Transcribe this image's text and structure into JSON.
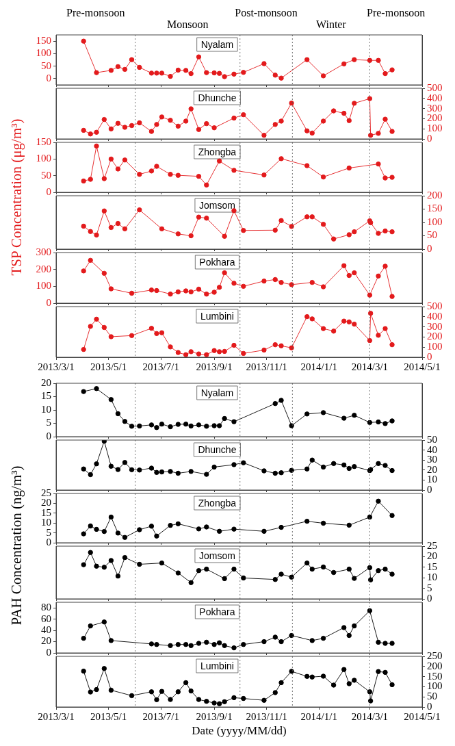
{
  "chart_data": [
    {
      "type": "line",
      "ylabel": "TSP Concentration (μg/m³)",
      "annotations": [
        "Nyalam",
        "Pre-monsoon",
        "Monsoon",
        "Post-monsoon",
        "Winter",
        "Pre-monsoon"
      ],
      "marker": "circle",
      "tick_labels": "y",
      "xlim": [
        "2013-03-01",
        "2014-05-01"
      ],
      "xticks": [
        {
          "value": "2013-03-01",
          "label": null
        },
        {
          "value": "2013-05-01",
          "label": null
        },
        {
          "value": "2013-07-01",
          "label": null
        },
        {
          "value": "2013-09-01",
          "label": null
        },
        {
          "value": "2013-11-01",
          "label": null
        },
        {
          "value": "2014-01-01",
          "label": null
        },
        {
          "value": "2014-03-01",
          "label": null
        },
        {
          "value": "2014-05-01",
          "label": null
        }
      ],
      "ylim": [
        -25,
        175
      ],
      "yticks": [
        0,
        50,
        100,
        150
      ],
      "ref_lines": [
        {
          "axis": "x",
          "value": "2013-06-01",
          "line_style": "dotted"
        },
        {
          "axis": "x",
          "value": "2013-10-01",
          "line_style": "dotted"
        },
        {
          "axis": "x",
          "value": "2013-12-01",
          "line_style": "dotted"
        },
        {
          "axis": "x",
          "value": "2014-03-01",
          "line_style": "dotted"
        }
      ],
      "x": [
        "2013-04-02",
        "2013-04-17",
        "2013-05-04",
        "2013-05-12",
        "2013-05-20",
        "2013-05-28",
        "2013-06-06",
        "2013-06-20",
        "2013-06-26",
        "2013-07-02",
        "2013-07-12",
        "2013-07-21",
        "2013-07-30",
        "2013-08-05",
        "2013-08-14",
        "2013-08-23",
        "2013-09-01",
        "2013-09-07",
        "2013-09-13",
        "2013-09-24",
        "2013-10-05",
        "2013-10-29",
        "2013-11-11",
        "2013-11-18",
        "2013-12-18",
        "2014-01-06",
        "2014-01-30",
        "2014-02-11",
        "2014-03-01",
        "2014-03-11",
        "2014-03-19",
        "2014-03-27"
      ],
      "series": [
        {
          "color": "#e31a1c",
          "values": [
            150,
            24,
            33,
            48,
            37,
            76,
            45,
            22,
            22,
            22,
            9,
            34,
            33,
            20,
            87,
            24,
            23,
            21,
            8,
            18,
            25,
            60,
            14,
            2,
            76,
            11,
            59,
            76,
            73,
            73,
            20,
            35
          ]
        }
      ]
    },
    {
      "type": "line",
      "annotations": [
        "Dhunche"
      ],
      "marker": "circle",
      "tick_labels": "y",
      "xlim": [
        "2013-03-01",
        "2014-05-01"
      ],
      "xticks": [
        {
          "value": "2013-03-01",
          "label": null
        },
        {
          "value": "2013-05-01",
          "label": null
        },
        {
          "value": "2013-07-01",
          "label": null
        },
        {
          "value": "2013-09-01",
          "label": null
        },
        {
          "value": "2013-11-01",
          "label": null
        },
        {
          "value": "2014-01-01",
          "label": null
        },
        {
          "value": "2014-03-01",
          "label": null
        },
        {
          "value": "2014-05-01",
          "label": null
        }
      ],
      "y2lim": [
        0,
        500
      ],
      "y2ticks": [
        0,
        100,
        200,
        300,
        400,
        500
      ],
      "ref_lines": [
        {
          "axis": "x",
          "value": "2013-06-01",
          "line_style": "dotted"
        },
        {
          "axis": "x",
          "value": "2013-10-01",
          "line_style": "dotted"
        },
        {
          "axis": "x",
          "value": "2013-12-01",
          "line_style": "dotted"
        },
        {
          "axis": "x",
          "value": "2014-03-01",
          "line_style": "dotted"
        }
      ],
      "x": [
        "2013-04-02",
        "2013-04-10",
        "2013-04-17",
        "2013-04-26",
        "2013-05-04",
        "2013-05-12",
        "2013-05-20",
        "2013-05-28",
        "2013-06-06",
        "2013-06-20",
        "2013-06-26",
        "2013-07-02",
        "2013-07-12",
        "2013-07-21",
        "2013-07-30",
        "2013-08-05",
        "2013-08-14",
        "2013-08-23",
        "2013-09-01",
        "2013-09-24",
        "2013-10-05",
        "2013-10-29",
        "2013-11-11",
        "2013-11-18",
        "2013-11-30",
        "2013-12-18",
        "2013-12-24",
        "2014-01-06",
        "2014-01-18",
        "2014-01-30",
        "2014-02-05",
        "2014-02-11",
        "2014-03-01",
        "2014-03-02",
        "2014-03-11",
        "2014-03-19",
        "2014-03-27"
      ],
      "series": [
        {
          "color": "#e31a1c",
          "axis": "y2",
          "values": [
            85,
            49,
            66,
            192,
            99,
            154,
            115,
            132,
            159,
            74,
            143,
            217,
            184,
            126,
            176,
            297,
            93,
            151,
            110,
            206,
            239,
            36,
            143,
            176,
            354,
            80,
            58,
            176,
            277,
            253,
            181,
            352,
            398,
            36,
            55,
            195,
            74
          ]
        }
      ]
    },
    {
      "type": "line",
      "annotations": [
        "Zhongba"
      ],
      "marker": "circle",
      "tick_labels": "y",
      "xlim": [
        "2013-03-01",
        "2014-05-01"
      ],
      "xticks": [
        {
          "value": "2013-03-01",
          "label": null
        },
        {
          "value": "2013-05-01",
          "label": null
        },
        {
          "value": "2013-07-01",
          "label": null
        },
        {
          "value": "2013-09-01",
          "label": null
        },
        {
          "value": "2013-11-01",
          "label": null
        },
        {
          "value": "2014-01-01",
          "label": null
        },
        {
          "value": "2014-03-01",
          "label": null
        },
        {
          "value": "2014-05-01",
          "label": null
        }
      ],
      "ylim": [
        0,
        150
      ],
      "yticks": [
        0,
        50,
        100,
        150
      ],
      "ref_lines": [
        {
          "axis": "x",
          "value": "2013-06-01",
          "line_style": "dotted"
        },
        {
          "axis": "x",
          "value": "2013-10-01",
          "line_style": "dotted"
        },
        {
          "axis": "x",
          "value": "2013-12-01",
          "line_style": "dotted"
        },
        {
          "axis": "x",
          "value": "2014-03-01",
          "line_style": "dotted"
        }
      ],
      "x": [
        "2013-04-02",
        "2013-04-10",
        "2013-04-17",
        "2013-04-26",
        "2013-05-04",
        "2013-05-12",
        "2013-05-20",
        "2013-06-06",
        "2013-06-20",
        "2013-06-26",
        "2013-07-12",
        "2013-07-21",
        "2013-08-14",
        "2013-08-23",
        "2013-09-07",
        "2013-09-24",
        "2013-10-29",
        "2013-11-18",
        "2013-12-18",
        "2014-01-06",
        "2014-02-05",
        "2014-03-11",
        "2014-03-19",
        "2014-03-27"
      ],
      "series": [
        {
          "color": "#e31a1c",
          "values": [
            34,
            39,
            139,
            41,
            100,
            70,
            97,
            54,
            64,
            78,
            54,
            51,
            48,
            22,
            94,
            66,
            52,
            101,
            80,
            46,
            73,
            85,
            43,
            45
          ]
        }
      ]
    },
    {
      "type": "line",
      "annotations": [
        "Jomsom"
      ],
      "marker": "circle",
      "tick_labels": "y",
      "xlim": [
        "2013-03-01",
        "2014-05-01"
      ],
      "xticks": [
        {
          "value": "2013-03-01",
          "label": null
        },
        {
          "value": "2013-05-01",
          "label": null
        },
        {
          "value": "2013-07-01",
          "label": null
        },
        {
          "value": "2013-09-01",
          "label": null
        },
        {
          "value": "2013-11-01",
          "label": null
        },
        {
          "value": "2014-01-01",
          "label": null
        },
        {
          "value": "2014-03-01",
          "label": null
        },
        {
          "value": "2014-05-01",
          "label": null
        }
      ],
      "y2lim": [
        0,
        200
      ],
      "y2ticks": [
        0,
        50,
        100,
        150,
        200
      ],
      "ref_lines": [
        {
          "axis": "x",
          "value": "2013-06-01",
          "line_style": "dotted"
        },
        {
          "axis": "x",
          "value": "2013-10-01",
          "line_style": "dotted"
        },
        {
          "axis": "x",
          "value": "2013-12-01",
          "line_style": "dotted"
        },
        {
          "axis": "x",
          "value": "2014-03-01",
          "line_style": "dotted"
        }
      ],
      "x": [
        "2013-04-02",
        "2013-04-10",
        "2013-04-17",
        "2013-04-26",
        "2013-05-04",
        "2013-05-12",
        "2013-05-20",
        "2013-06-06",
        "2013-07-02",
        "2013-07-21",
        "2013-08-05",
        "2013-08-14",
        "2013-08-23",
        "2013-09-13",
        "2013-09-24",
        "2013-10-05",
        "2013-11-11",
        "2013-11-18",
        "2013-11-30",
        "2013-12-18",
        "2013-12-24",
        "2014-01-06",
        "2014-01-18",
        "2014-02-05",
        "2014-02-11",
        "2014-03-01",
        "2014-03-02",
        "2014-03-11",
        "2014-03-19",
        "2014-03-27"
      ],
      "series": [
        {
          "color": "#e31a1c",
          "axis": "y2",
          "values": [
            86,
            66,
            53,
            143,
            81,
            96,
            76,
            147,
            76,
            57,
            50,
            120,
            116,
            48,
            144,
            70,
            71,
            107,
            85,
            121,
            121,
            93,
            38,
            54,
            65,
            106,
            99,
            59,
            68,
            65
          ]
        }
      ]
    },
    {
      "type": "line",
      "annotations": [
        "Pokhara"
      ],
      "marker": "circle",
      "tick_labels": "y",
      "xlim": [
        "2013-03-01",
        "2014-05-01"
      ],
      "xticks": [
        {
          "value": "2013-03-01",
          "label": null
        },
        {
          "value": "2013-05-01",
          "label": null
        },
        {
          "value": "2013-07-01",
          "label": null
        },
        {
          "value": "2013-09-01",
          "label": null
        },
        {
          "value": "2013-11-01",
          "label": null
        },
        {
          "value": "2014-01-01",
          "label": null
        },
        {
          "value": "2014-03-01",
          "label": null
        },
        {
          "value": "2014-05-01",
          "label": null
        }
      ],
      "ylim": [
        0,
        300
      ],
      "yticks": [
        0,
        100,
        200,
        300
      ],
      "ref_lines": [
        {
          "axis": "x",
          "value": "2013-06-01",
          "line_style": "dotted"
        },
        {
          "axis": "x",
          "value": "2013-10-01",
          "line_style": "dotted"
        },
        {
          "axis": "x",
          "value": "2013-12-01",
          "line_style": "dotted"
        },
        {
          "axis": "x",
          "value": "2014-03-01",
          "line_style": "dotted"
        }
      ],
      "x": [
        "2013-04-02",
        "2013-04-10",
        "2013-04-26",
        "2013-05-04",
        "2013-05-28",
        "2013-06-20",
        "2013-06-26",
        "2013-07-12",
        "2013-07-21",
        "2013-07-30",
        "2013-08-05",
        "2013-08-14",
        "2013-08-23",
        "2013-09-01",
        "2013-09-07",
        "2013-09-13",
        "2013-09-24",
        "2013-10-05",
        "2013-10-29",
        "2013-11-11",
        "2013-11-18",
        "2013-11-30",
        "2013-12-24",
        "2014-01-06",
        "2014-01-30",
        "2014-02-05",
        "2014-02-11",
        "2014-03-01",
        "2014-03-11",
        "2014-03-19",
        "2014-03-27"
      ],
      "series": [
        {
          "color": "#e31a1c",
          "values": [
            191,
            254,
            177,
            85,
            59,
            78,
            75,
            54,
            67,
            73,
            67,
            83,
            54,
            65,
            94,
            180,
            118,
            100,
            131,
            140,
            123,
            110,
            123,
            97,
            222,
            164,
            180,
            48,
            161,
            219,
            40
          ]
        }
      ]
    },
    {
      "type": "line",
      "annotations": [
        "Lumbini"
      ],
      "marker": "circle",
      "xlim": [
        "2013-03-01",
        "2014-05-01"
      ],
      "xticks": [
        {
          "value": "2013-03-01",
          "label": "2013/3/1"
        },
        {
          "value": "2013-05-01",
          "label": "2013/5/1"
        },
        {
          "value": "2013-07-01",
          "label": "2013/7/1"
        },
        {
          "value": "2013-09-01",
          "label": "2013/9/1"
        },
        {
          "value": "2013-11-01",
          "label": "2013/11/1"
        },
        {
          "value": "2014-01-01",
          "label": "2014/1/1"
        },
        {
          "value": "2014-03-01",
          "label": "2014/3/1"
        },
        {
          "value": "2014-05-01",
          "label": "2014/5/1"
        }
      ],
      "y2lim": [
        0,
        500
      ],
      "y2ticks": [
        0,
        100,
        200,
        300,
        400,
        500
      ],
      "ref_lines": [
        {
          "axis": "x",
          "value": "2013-06-01",
          "line_style": "dotted"
        },
        {
          "axis": "x",
          "value": "2013-10-01",
          "line_style": "dotted"
        },
        {
          "axis": "x",
          "value": "2013-12-01",
          "line_style": "dotted"
        },
        {
          "axis": "x",
          "value": "2014-03-01",
          "line_style": "dotted"
        }
      ],
      "x": [
        "2013-04-02",
        "2013-04-10",
        "2013-04-17",
        "2013-04-26",
        "2013-05-04",
        "2013-05-28",
        "2013-06-20",
        "2013-06-26",
        "2013-07-02",
        "2013-07-12",
        "2013-07-21",
        "2013-07-30",
        "2013-08-05",
        "2013-08-14",
        "2013-08-23",
        "2013-09-01",
        "2013-09-07",
        "2013-09-13",
        "2013-09-24",
        "2013-10-05",
        "2013-10-29",
        "2013-11-11",
        "2013-11-18",
        "2013-11-30",
        "2013-12-18",
        "2013-12-24",
        "2014-01-06",
        "2014-01-18",
        "2014-01-30",
        "2014-02-05",
        "2014-02-11",
        "2014-03-01",
        "2014-03-02",
        "2014-03-11",
        "2014-03-19",
        "2014-03-27"
      ],
      "series": [
        {
          "color": "#e31a1c",
          "axis": "y2",
          "values": [
            77,
            305,
            376,
            294,
            203,
            214,
            286,
            234,
            242,
            102,
            47,
            25,
            55,
            33,
            25,
            66,
            55,
            58,
            118,
            38,
            71,
            124,
            113,
            93,
            401,
            379,
            283,
            258,
            357,
            349,
            327,
            165,
            434,
            217,
            283,
            124
          ]
        }
      ]
    },
    {
      "type": "line",
      "ylabel": "PAH Concentration (ng/m³)",
      "annotations": [
        "Nyalam"
      ],
      "marker": "circle",
      "tick_labels": "y",
      "xlim": [
        "2013-03-01",
        "2014-05-01"
      ],
      "xticks": [
        {
          "value": "2013-03-01",
          "label": null
        },
        {
          "value": "2013-05-01",
          "label": null
        },
        {
          "value": "2013-07-01",
          "label": null
        },
        {
          "value": "2013-09-01",
          "label": null
        },
        {
          "value": "2013-11-01",
          "label": null
        },
        {
          "value": "2014-01-01",
          "label": null
        },
        {
          "value": "2014-03-01",
          "label": null
        },
        {
          "value": "2014-05-01",
          "label": null
        }
      ],
      "ylim": [
        0,
        20
      ],
      "yticks": [
        0,
        5,
        10,
        15,
        20
      ],
      "ref_lines": [
        {
          "axis": "x",
          "value": "2013-06-01",
          "line_style": "dotted"
        },
        {
          "axis": "x",
          "value": "2013-10-01",
          "line_style": "dotted"
        },
        {
          "axis": "x",
          "value": "2013-12-01",
          "line_style": "dotted"
        },
        {
          "axis": "x",
          "value": "2014-03-01",
          "line_style": "dotted"
        }
      ],
      "x": [
        "2013-04-02",
        "2013-04-17",
        "2013-05-04",
        "2013-05-12",
        "2013-05-20",
        "2013-05-28",
        "2013-06-06",
        "2013-06-20",
        "2013-06-26",
        "2013-07-02",
        "2013-07-12",
        "2013-07-21",
        "2013-07-30",
        "2013-08-05",
        "2013-08-14",
        "2013-08-23",
        "2013-09-01",
        "2013-09-07",
        "2013-09-13",
        "2013-09-24",
        "2013-11-11",
        "2013-11-18",
        "2013-11-30",
        "2013-12-18",
        "2014-01-06",
        "2014-01-30",
        "2014-02-11",
        "2014-03-01",
        "2014-03-11",
        "2014-03-19",
        "2014-03-27"
      ],
      "series": [
        {
          "color": "#000000",
          "values": [
            16.9,
            18.0,
            13.9,
            8.6,
            5.7,
            3.9,
            4.0,
            4.4,
            3.4,
            4.7,
            3.7,
            4.6,
            4.7,
            4.0,
            4.4,
            3.9,
            4.1,
            4.1,
            6.8,
            5.6,
            12.4,
            13.6,
            4.1,
            8.5,
            9.0,
            6.9,
            8.0,
            5.3,
            5.5,
            4.9,
            5.9
          ]
        }
      ]
    },
    {
      "type": "line",
      "annotations": [
        "Dhunche"
      ],
      "marker": "circle",
      "tick_labels": "y",
      "xlim": [
        "2013-03-01",
        "2014-05-01"
      ],
      "xticks": [
        {
          "value": "2013-03-01",
          "label": null
        },
        {
          "value": "2013-05-01",
          "label": null
        },
        {
          "value": "2013-07-01",
          "label": null
        },
        {
          "value": "2013-09-01",
          "label": null
        },
        {
          "value": "2013-11-01",
          "label": null
        },
        {
          "value": "2014-01-01",
          "label": null
        },
        {
          "value": "2014-03-01",
          "label": null
        },
        {
          "value": "2014-05-01",
          "label": null
        }
      ],
      "y2lim": [
        0,
        50
      ],
      "y2ticks": [
        0,
        10,
        20,
        30,
        40,
        50
      ],
      "ref_lines": [
        {
          "axis": "x",
          "value": "2013-06-01",
          "line_style": "dotted"
        },
        {
          "axis": "x",
          "value": "2013-10-01",
          "line_style": "dotted"
        },
        {
          "axis": "x",
          "value": "2013-12-01",
          "line_style": "dotted"
        },
        {
          "axis": "x",
          "value": "2014-03-01",
          "line_style": "dotted"
        }
      ],
      "x": [
        "2013-04-02",
        "2013-04-10",
        "2013-04-17",
        "2013-04-26",
        "2013-05-04",
        "2013-05-12",
        "2013-05-20",
        "2013-05-28",
        "2013-06-06",
        "2013-06-20",
        "2013-06-26",
        "2013-07-02",
        "2013-07-12",
        "2013-07-21",
        "2013-08-05",
        "2013-08-23",
        "2013-09-01",
        "2013-09-24",
        "2013-10-05",
        "2013-10-29",
        "2013-11-11",
        "2013-11-18",
        "2013-11-30",
        "2013-12-18",
        "2013-12-24",
        "2014-01-06",
        "2014-01-18",
        "2014-01-30",
        "2014-02-05",
        "2014-02-11",
        "2014-03-01",
        "2014-03-02",
        "2014-03-11",
        "2014-03-19",
        "2014-03-27"
      ],
      "series": [
        {
          "color": "#000000",
          "axis": "y2",
          "values": [
            21.1,
            15.4,
            26.2,
            48.9,
            23.8,
            20.5,
            27.6,
            20.3,
            20.0,
            21.9,
            17.6,
            18.1,
            18.6,
            16.8,
            18.6,
            15.7,
            23.0,
            25.4,
            27.3,
            19.2,
            16.8,
            17.3,
            19.7,
            21.1,
            30.0,
            23.0,
            26.5,
            25.1,
            21.6,
            23.5,
            19.5,
            20.5,
            26.5,
            24.6,
            19.5
          ]
        }
      ]
    },
    {
      "type": "line",
      "annotations": [
        "Zhongba"
      ],
      "marker": "circle",
      "tick_labels": "y",
      "xlim": [
        "2013-03-01",
        "2014-05-01"
      ],
      "xticks": [
        {
          "value": "2013-03-01",
          "label": null
        },
        {
          "value": "2013-05-01",
          "label": null
        },
        {
          "value": "2013-07-01",
          "label": null
        },
        {
          "value": "2013-09-01",
          "label": null
        },
        {
          "value": "2013-11-01",
          "label": null
        },
        {
          "value": "2014-01-01",
          "label": null
        },
        {
          "value": "2014-03-01",
          "label": null
        },
        {
          "value": "2014-05-01",
          "label": null
        }
      ],
      "ylim": [
        0,
        25
      ],
      "yticks": [
        0,
        5,
        10,
        15,
        20,
        25
      ],
      "ref_lines": [
        {
          "axis": "x",
          "value": "2013-06-01",
          "line_style": "dotted"
        },
        {
          "axis": "x",
          "value": "2013-10-01",
          "line_style": "dotted"
        },
        {
          "axis": "x",
          "value": "2013-12-01",
          "line_style": "dotted"
        },
        {
          "axis": "x",
          "value": "2014-03-01",
          "line_style": "dotted"
        }
      ],
      "x": [
        "2013-04-02",
        "2013-04-10",
        "2013-04-17",
        "2013-04-26",
        "2013-05-04",
        "2013-05-12",
        "2013-05-20",
        "2013-06-06",
        "2013-06-20",
        "2013-06-26",
        "2013-07-12",
        "2013-07-21",
        "2013-08-14",
        "2013-08-23",
        "2013-09-07",
        "2013-09-24",
        "2013-10-29",
        "2013-11-18",
        "2013-12-18",
        "2014-01-06",
        "2014-02-05",
        "2014-03-01",
        "2014-03-11",
        "2014-03-27"
      ],
      "series": [
        {
          "color": "#000000",
          "values": [
            4.5,
            8.5,
            6.8,
            5.7,
            13.0,
            4.9,
            2.7,
            6.6,
            8.4,
            3.4,
            8.8,
            9.6,
            7.0,
            8.0,
            5.8,
            6.9,
            5.8,
            7.8,
            10.9,
            9.9,
            8.9,
            13.0,
            21.1,
            13.8
          ]
        }
      ]
    },
    {
      "type": "line",
      "annotations": [
        "Jomsom"
      ],
      "marker": "circle",
      "tick_labels": "y",
      "xlim": [
        "2013-03-01",
        "2014-05-01"
      ],
      "xticks": [
        {
          "value": "2013-03-01",
          "label": null
        },
        {
          "value": "2013-05-01",
          "label": null
        },
        {
          "value": "2013-07-01",
          "label": null
        },
        {
          "value": "2013-09-01",
          "label": null
        },
        {
          "value": "2013-11-01",
          "label": null
        },
        {
          "value": "2014-01-01",
          "label": null
        },
        {
          "value": "2014-03-01",
          "label": null
        },
        {
          "value": "2014-05-01",
          "label": null
        }
      ],
      "y2lim": [
        0,
        25
      ],
      "y2ticks": [
        0,
        5,
        10,
        15,
        20,
        25
      ],
      "ref_lines": [
        {
          "axis": "x",
          "value": "2013-06-01",
          "line_style": "dotted"
        },
        {
          "axis": "x",
          "value": "2013-10-01",
          "line_style": "dotted"
        },
        {
          "axis": "x",
          "value": "2013-12-01",
          "line_style": "dotted"
        },
        {
          "axis": "x",
          "value": "2014-03-01",
          "line_style": "dotted"
        }
      ],
      "x": [
        "2013-04-02",
        "2013-04-10",
        "2013-04-17",
        "2013-04-26",
        "2013-05-04",
        "2013-05-12",
        "2013-05-20",
        "2013-06-06",
        "2013-07-02",
        "2013-07-21",
        "2013-08-05",
        "2013-08-14",
        "2013-08-23",
        "2013-09-13",
        "2013-09-24",
        "2013-10-05",
        "2013-11-11",
        "2013-11-18",
        "2013-11-30",
        "2013-12-18",
        "2013-12-24",
        "2014-01-06",
        "2014-01-18",
        "2014-02-05",
        "2014-02-11",
        "2014-03-01",
        "2014-03-02",
        "2014-03-11",
        "2014-03-19",
        "2014-03-27"
      ],
      "series": [
        {
          "color": "#000000",
          "axis": "y2",
          "values": [
            16.2,
            22.0,
            15.5,
            15.0,
            18.2,
            10.8,
            19.6,
            16.4,
            17.0,
            12.3,
            7.7,
            13.4,
            14.1,
            9.6,
            14.1,
            9.9,
            9.2,
            11.7,
            10.3,
            17.0,
            14.1,
            15.1,
            12.5,
            14.1,
            9.7,
            14.8,
            9.0,
            13.4,
            14.1,
            11.7
          ]
        }
      ]
    },
    {
      "type": "line",
      "annotations": [
        "Pokhara"
      ],
      "marker": "circle",
      "tick_labels": "y",
      "xlim": [
        "2013-03-01",
        "2014-05-01"
      ],
      "xticks": [
        {
          "value": "2013-03-01",
          "label": null
        },
        {
          "value": "2013-05-01",
          "label": null
        },
        {
          "value": "2013-07-01",
          "label": null
        },
        {
          "value": "2013-09-01",
          "label": null
        },
        {
          "value": "2013-11-01",
          "label": null
        },
        {
          "value": "2014-01-01",
          "label": null
        },
        {
          "value": "2014-03-01",
          "label": null
        },
        {
          "value": "2014-05-01",
          "label": null
        }
      ],
      "ylim": [
        0,
        90
      ],
      "yticks": [
        0,
        20,
        40,
        60,
        80
      ],
      "ref_lines": [
        {
          "axis": "x",
          "value": "2013-06-01",
          "line_style": "dotted"
        },
        {
          "axis": "x",
          "value": "2013-10-01",
          "line_style": "dotted"
        },
        {
          "axis": "x",
          "value": "2013-12-01",
          "line_style": "dotted"
        },
        {
          "axis": "x",
          "value": "2014-03-01",
          "line_style": "dotted"
        }
      ],
      "x": [
        "2013-04-02",
        "2013-04-10",
        "2013-04-26",
        "2013-05-04",
        "2013-06-20",
        "2013-06-26",
        "2013-07-12",
        "2013-07-21",
        "2013-07-30",
        "2013-08-05",
        "2013-08-14",
        "2013-08-23",
        "2013-09-01",
        "2013-09-07",
        "2013-09-13",
        "2013-09-24",
        "2013-10-05",
        "2013-10-29",
        "2013-11-11",
        "2013-11-18",
        "2013-11-30",
        "2013-12-24",
        "2014-01-06",
        "2014-01-30",
        "2014-02-05",
        "2014-02-11",
        "2014-03-01",
        "2014-03-11",
        "2014-03-19",
        "2014-03-27"
      ],
      "series": [
        {
          "color": "#000000",
          "values": [
            26,
            48,
            55,
            22,
            16,
            15,
            13,
            15,
            15,
            13,
            17,
            19,
            15,
            18,
            13,
            9,
            15,
            20,
            28,
            20,
            31,
            22,
            26,
            45,
            31,
            48,
            75,
            19,
            17,
            17
          ]
        }
      ]
    },
    {
      "type": "line",
      "xlabel": "Date (yyyy/MM/dd)",
      "annotations": [
        "Lumbini"
      ],
      "marker": "circle",
      "xlim": [
        "2013-03-01",
        "2014-05-01"
      ],
      "xticks": [
        {
          "value": "2013-03-01",
          "label": "2013/3/1"
        },
        {
          "value": "2013-05-01",
          "label": "2013/5/1"
        },
        {
          "value": "2013-07-01",
          "label": "2013/7/1"
        },
        {
          "value": "2013-09-01",
          "label": "2013/9/1"
        },
        {
          "value": "2013-11-01",
          "label": "2013/11/1"
        },
        {
          "value": "2014-01-01",
          "label": "2014/1/1"
        },
        {
          "value": "2014-03-01",
          "label": "2014/3/1"
        },
        {
          "value": "2014-05-01",
          "label": "2014/5/1"
        }
      ],
      "y2lim": [
        0,
        250
      ],
      "y2ticks": [
        0,
        50,
        100,
        150,
        200,
        250
      ],
      "ref_lines": [
        {
          "axis": "x",
          "value": "2013-06-01",
          "line_style": "dotted"
        },
        {
          "axis": "x",
          "value": "2013-10-01",
          "line_style": "dotted"
        },
        {
          "axis": "x",
          "value": "2013-12-01",
          "line_style": "dotted"
        },
        {
          "axis": "x",
          "value": "2014-03-01",
          "line_style": "dotted"
        }
      ],
      "x": [
        "2013-04-02",
        "2013-04-10",
        "2013-04-17",
        "2013-04-26",
        "2013-05-04",
        "2013-05-28",
        "2013-06-20",
        "2013-06-26",
        "2013-07-02",
        "2013-07-12",
        "2013-07-21",
        "2013-07-30",
        "2013-08-05",
        "2013-08-14",
        "2013-08-23",
        "2013-09-01",
        "2013-09-07",
        "2013-09-13",
        "2013-09-24",
        "2013-10-05",
        "2013-10-29",
        "2013-11-11",
        "2013-11-18",
        "2013-11-30",
        "2013-12-18",
        "2013-12-24",
        "2014-01-06",
        "2014-01-18",
        "2014-01-30",
        "2014-02-05",
        "2014-02-11",
        "2014-03-01",
        "2014-03-02",
        "2014-03-11",
        "2014-03-19",
        "2014-03-27"
      ],
      "series": [
        {
          "color": "#000000",
          "axis": "y2",
          "values": [
            177,
            74,
            86,
            190,
            83,
            56,
            75,
            36,
            77,
            37,
            75,
            120,
            79,
            37,
            28,
            20,
            16,
            26,
            46,
            42,
            33,
            71,
            120,
            176,
            151,
            148,
            152,
            108,
            185,
            115,
            132,
            75,
            30,
            175,
            171,
            110
          ]
        }
      ]
    }
  ]
}
